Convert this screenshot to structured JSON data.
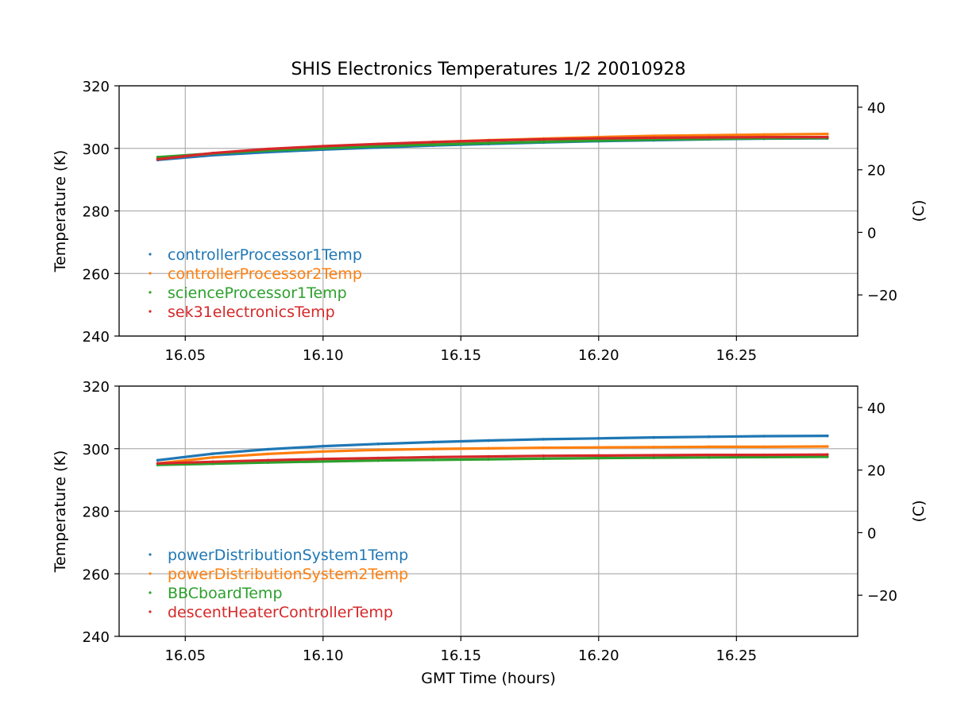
{
  "figure": {
    "title": "SHIS Electronics Temperatures 1/2 20010928",
    "xlabel": "GMT Time (hours)"
  },
  "chart_data": [
    {
      "type": "scatter",
      "title": "SHIS Electronics Temperatures 1/2 20010928",
      "xlabel": "",
      "ylabel": "Temperature (K)",
      "ylabel_right": "(C)",
      "xlim": [
        16.026,
        16.294
      ],
      "ylim": [
        240,
        320
      ],
      "ylim_right": [
        -33.15,
        46.85
      ],
      "x_ticks": [
        "16.05",
        "16.10",
        "16.15",
        "16.20",
        "16.25"
      ],
      "y_ticks": [
        "240",
        "260",
        "280",
        "300",
        "320"
      ],
      "y_ticks_right": [
        "−20",
        "0",
        "20",
        "40"
      ],
      "grid": true,
      "legend_position": "lower-left",
      "series": [
        {
          "name": "controllerProcessor1Temp",
          "color": "#1f77b4",
          "x": [
            16.04,
            16.06,
            16.08,
            16.1,
            16.12,
            16.14,
            16.16,
            16.18,
            16.2,
            16.22,
            16.24,
            16.26,
            16.283
          ],
          "y": [
            296.3,
            297.8,
            298.8,
            299.6,
            300.3,
            300.9,
            301.4,
            301.9,
            302.3,
            302.6,
            302.9,
            303.1,
            303.2
          ]
        },
        {
          "name": "controllerProcessor2Temp",
          "color": "#ff7f0e",
          "x": [
            16.04,
            16.06,
            16.08,
            16.1,
            16.12,
            16.14,
            16.16,
            16.18,
            16.2,
            16.22,
            16.24,
            16.26,
            16.283
          ],
          "y": [
            296.8,
            298.4,
            299.6,
            300.5,
            301.3,
            302.0,
            302.6,
            303.1,
            303.6,
            304.0,
            304.2,
            304.4,
            304.6
          ]
        },
        {
          "name": "scienceProcessor1Temp",
          "color": "#2ca02c",
          "x": [
            16.04,
            16.06,
            16.08,
            16.1,
            16.12,
            16.14,
            16.16,
            16.18,
            16.2,
            16.22,
            16.24,
            16.26,
            16.283
          ],
          "y": [
            297.2,
            298.4,
            299.3,
            300.0,
            300.7,
            301.2,
            301.7,
            302.1,
            302.5,
            302.8,
            303.0,
            303.2,
            303.3
          ]
        },
        {
          "name": "sek31electronicsTemp",
          "color": "#d62728",
          "x": [
            16.04,
            16.06,
            16.08,
            16.1,
            16.12,
            16.14,
            16.16,
            16.18,
            16.2,
            16.22,
            16.24,
            16.26,
            16.283
          ],
          "y": [
            296.5,
            298.5,
            299.8,
            300.7,
            301.4,
            302.0,
            302.5,
            302.9,
            303.2,
            303.4,
            303.5,
            303.6,
            303.6
          ]
        }
      ]
    },
    {
      "type": "scatter",
      "title": "",
      "xlabel": "GMT Time (hours)",
      "ylabel": "Temperature (K)",
      "ylabel_right": "(C)",
      "xlim": [
        16.026,
        16.294
      ],
      "ylim": [
        240,
        320
      ],
      "ylim_right": [
        -33.15,
        46.85
      ],
      "x_ticks": [
        "16.05",
        "16.10",
        "16.15",
        "16.20",
        "16.25"
      ],
      "y_ticks": [
        "240",
        "260",
        "280",
        "300",
        "320"
      ],
      "y_ticks_right": [
        "−20",
        "0",
        "20",
        "40"
      ],
      "grid": true,
      "legend_position": "lower-left",
      "series": [
        {
          "name": "powerDistributionSystem1Temp",
          "color": "#1f77b4",
          "x": [
            16.04,
            16.06,
            16.08,
            16.1,
            16.12,
            16.14,
            16.16,
            16.18,
            16.2,
            16.22,
            16.24,
            16.26,
            16.283
          ],
          "y": [
            296.3,
            298.4,
            299.8,
            300.8,
            301.5,
            302.1,
            302.6,
            303.0,
            303.3,
            303.6,
            303.8,
            304.0,
            304.1
          ]
        },
        {
          "name": "powerDistributionSystem2Temp",
          "color": "#ff7f0e",
          "x": [
            16.04,
            16.06,
            16.08,
            16.1,
            16.12,
            16.14,
            16.16,
            16.18,
            16.2,
            16.22,
            16.24,
            16.26,
            16.283
          ],
          "y": [
            295.3,
            297.2,
            298.3,
            299.1,
            299.6,
            299.9,
            300.1,
            300.3,
            300.4,
            300.5,
            300.6,
            300.6,
            300.7
          ]
        },
        {
          "name": "BBCboardTemp",
          "color": "#2ca02c",
          "x": [
            16.04,
            16.06,
            16.08,
            16.1,
            16.12,
            16.14,
            16.16,
            16.18,
            16.2,
            16.22,
            16.24,
            16.26,
            16.283
          ],
          "y": [
            294.8,
            295.2,
            295.6,
            295.9,
            296.2,
            296.4,
            296.6,
            296.8,
            297.0,
            297.1,
            297.2,
            297.3,
            297.4
          ]
        },
        {
          "name": "descentHeaterControllerTemp",
          "color": "#d62728",
          "x": [
            16.04,
            16.06,
            16.08,
            16.1,
            16.12,
            16.14,
            16.16,
            16.18,
            16.2,
            16.22,
            16.24,
            16.26,
            16.283
          ],
          "y": [
            295.3,
            295.8,
            296.3,
            296.7,
            297.0,
            297.3,
            297.5,
            297.7,
            297.8,
            297.9,
            298.0,
            298.0,
            298.1
          ]
        }
      ]
    }
  ]
}
